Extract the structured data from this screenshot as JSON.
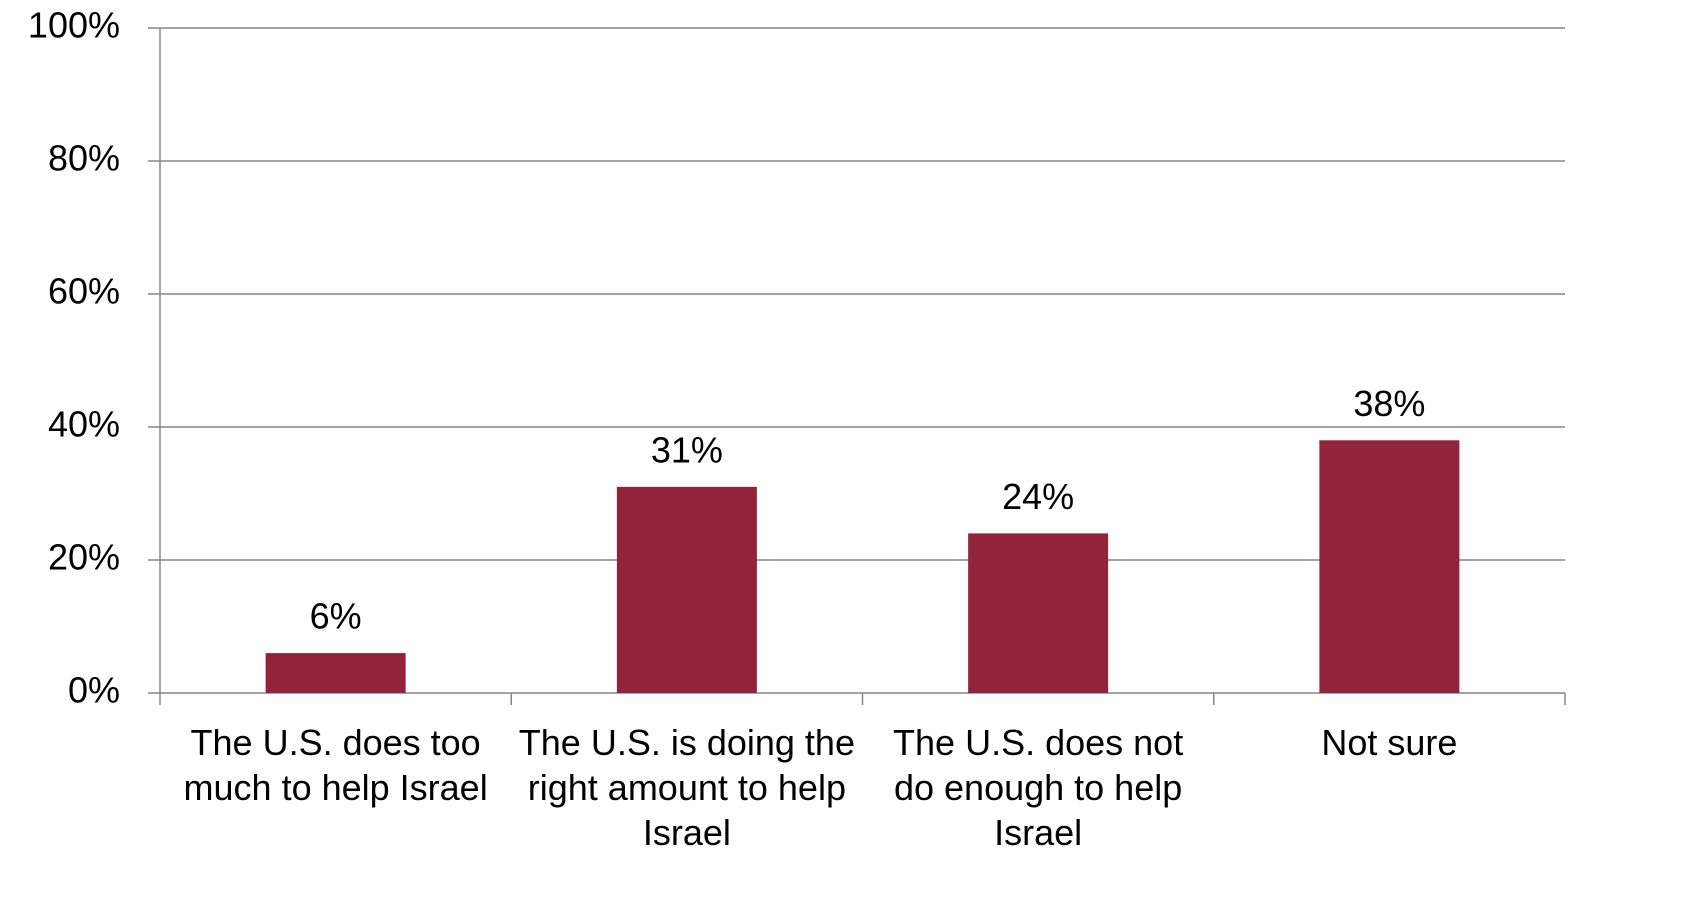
{
  "chart_data": {
    "type": "bar",
    "categories": [
      "The U.S. does too much to help Israel",
      "The U.S. is doing the right amount to help Israel",
      "The U.S. does not do enough to help Israel",
      "Not sure"
    ],
    "values": [
      6,
      31,
      24,
      38
    ],
    "value_labels": [
      "6%",
      "31%",
      "24%",
      "38%"
    ],
    "color": "#92233a",
    "ylim": [
      0,
      100
    ],
    "yticks": [
      {
        "value": 0,
        "label": "0%"
      },
      {
        "value": 20,
        "label": "20%"
      },
      {
        "value": 40,
        "label": "40%"
      },
      {
        "value": 60,
        "label": "60%"
      },
      {
        "value": 80,
        "label": "80%"
      },
      {
        "value": 100,
        "label": "100%"
      }
    ],
    "grid": true
  }
}
